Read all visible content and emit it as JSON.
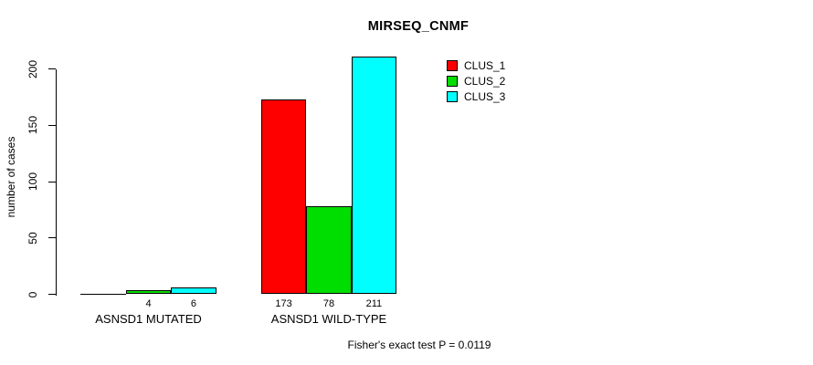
{
  "chart_data": {
    "type": "bar",
    "title": "MIRSEQ_CNMF",
    "ylabel": "number of cases",
    "xlabel": "",
    "categories": [
      "ASNSD1 MUTATED",
      "ASNSD1 WILD-TYPE"
    ],
    "series": [
      {
        "name": "CLUS_1",
        "color": "#FF0000",
        "values": [
          0,
          173
        ]
      },
      {
        "name": "CLUS_2",
        "color": "#00DD00",
        "values": [
          4,
          78
        ]
      },
      {
        "name": "CLUS_3",
        "color": "#00FFFF",
        "values": [
          6,
          211
        ]
      }
    ],
    "bar_value_labels": [
      [
        "",
        "4",
        "6"
      ],
      [
        "173",
        "78",
        "211"
      ]
    ],
    "y_ticks": [
      0,
      50,
      100,
      150,
      200
    ],
    "ylim": [
      0,
      215
    ],
    "grid": false,
    "legend_position": "top-right-inside",
    "legend": [
      "CLUS_1",
      "CLUS_2",
      "CLUS_3"
    ],
    "annotation": "Fisher's exact test P = 0.0119",
    "axis_color": "#000000",
    "background_color": "#FFFFFF"
  }
}
